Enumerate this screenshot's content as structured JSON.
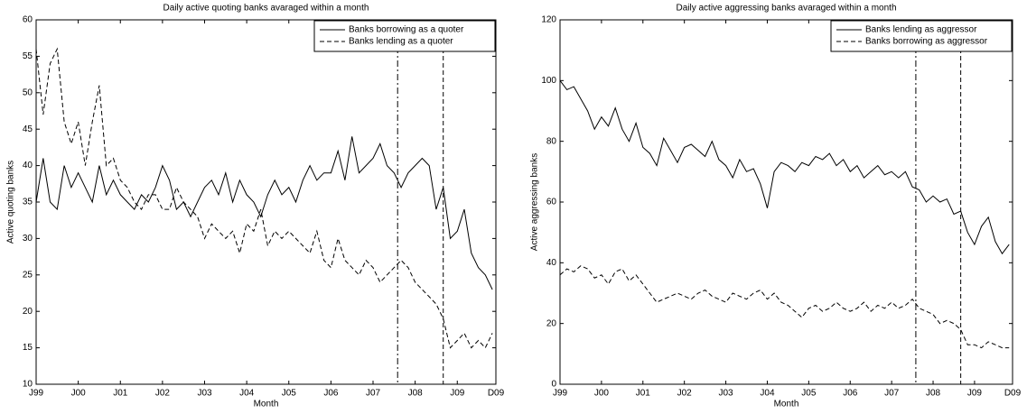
{
  "chart_data": [
    {
      "type": "line",
      "title": "Daily active quoting banks avaraged within a month",
      "xlabel": "Month",
      "ylabel": "Active quoting banks",
      "x": [
        0,
        2,
        4,
        6,
        8,
        10,
        12,
        14,
        16,
        18,
        20,
        22,
        24,
        26,
        28,
        30,
        32,
        34,
        36,
        38,
        40,
        42,
        44,
        46,
        48,
        50,
        52,
        54,
        56,
        58,
        60,
        62,
        64,
        66,
        68,
        70,
        72,
        74,
        76,
        78,
        80,
        82,
        84,
        86,
        88,
        90,
        92,
        94,
        96,
        98,
        100,
        102,
        104,
        106,
        108,
        110,
        112,
        114,
        116,
        118,
        120,
        122,
        124,
        126,
        128,
        130
      ],
      "xlim": [
        0,
        131
      ],
      "xticks": [
        {
          "value": 0,
          "label": "J99"
        },
        {
          "value": 12,
          "label": "J00"
        },
        {
          "value": 24,
          "label": "J01"
        },
        {
          "value": 36,
          "label": "J02"
        },
        {
          "value": 48,
          "label": "J03"
        },
        {
          "value": 60,
          "label": "J04"
        },
        {
          "value": 72,
          "label": "J05"
        },
        {
          "value": 84,
          "label": "J06"
        },
        {
          "value": 96,
          "label": "J07"
        },
        {
          "value": 108,
          "label": "J08"
        },
        {
          "value": 120,
          "label": "J09"
        },
        {
          "value": 131,
          "label": "D09"
        }
      ],
      "ylim": [
        10,
        60
      ],
      "yticks": [
        10,
        15,
        20,
        25,
        30,
        35,
        40,
        45,
        50,
        55,
        60
      ],
      "legend": "upper right",
      "vlines": [
        {
          "x": 103,
          "style": "dashdot"
        },
        {
          "x": 116,
          "style": "dashed"
        }
      ],
      "series": [
        {
          "name": "Banks borrowing as a quoter",
          "color": "#000000",
          "style": "solid",
          "values": [
            35,
            41,
            35,
            34,
            40,
            37,
            39,
            37,
            35,
            40,
            36,
            38,
            36,
            35,
            34,
            36,
            35,
            37,
            40,
            38,
            34,
            35,
            33,
            35,
            37,
            38,
            36,
            39,
            35,
            38,
            36,
            35,
            33,
            36,
            38,
            36,
            37,
            35,
            38,
            40,
            38,
            39,
            39,
            42,
            38,
            44,
            39,
            40,
            41,
            43,
            40,
            39,
            37,
            39,
            40,
            41,
            40,
            34,
            37,
            30,
            31,
            34,
            28,
            26,
            25,
            23
          ]
        },
        {
          "name": "Banks lending as a quoter",
          "color": "#000000",
          "style": "dashed",
          "values": [
            56,
            47,
            54,
            56,
            46,
            43,
            46,
            40,
            46,
            51,
            40,
            41,
            38,
            37,
            35,
            34,
            36,
            36,
            34,
            34,
            37,
            35,
            34,
            33,
            30,
            32,
            31,
            30,
            31,
            28,
            32,
            31,
            34,
            29,
            31,
            30,
            31,
            30,
            29,
            28,
            31,
            27,
            26,
            30,
            27,
            26,
            25,
            27,
            26,
            24,
            25,
            26,
            27,
            26,
            24,
            23,
            22,
            21,
            19,
            15,
            16,
            17,
            15,
            16,
            15,
            17
          ]
        }
      ]
    },
    {
      "type": "line",
      "title": "Daily active aggressing banks avaraged within a month",
      "xlabel": "Month",
      "ylabel": "Active aggressing banks",
      "x": [
        0,
        2,
        4,
        6,
        8,
        10,
        12,
        14,
        16,
        18,
        20,
        22,
        24,
        26,
        28,
        30,
        32,
        34,
        36,
        38,
        40,
        42,
        44,
        46,
        48,
        50,
        52,
        54,
        56,
        58,
        60,
        62,
        64,
        66,
        68,
        70,
        72,
        74,
        76,
        78,
        80,
        82,
        84,
        86,
        88,
        90,
        92,
        94,
        96,
        98,
        100,
        102,
        104,
        106,
        108,
        110,
        112,
        114,
        116,
        118,
        120,
        122,
        124,
        126,
        128,
        130
      ],
      "xlim": [
        0,
        131
      ],
      "xticks": [
        {
          "value": 0,
          "label": "J99"
        },
        {
          "value": 12,
          "label": "J00"
        },
        {
          "value": 24,
          "label": "J01"
        },
        {
          "value": 36,
          "label": "J02"
        },
        {
          "value": 48,
          "label": "J03"
        },
        {
          "value": 60,
          "label": "J04"
        },
        {
          "value": 72,
          "label": "J05"
        },
        {
          "value": 84,
          "label": "J06"
        },
        {
          "value": 96,
          "label": "J07"
        },
        {
          "value": 108,
          "label": "J08"
        },
        {
          "value": 120,
          "label": "J09"
        },
        {
          "value": 131,
          "label": "D09"
        }
      ],
      "ylim": [
        0,
        120
      ],
      "yticks": [
        0,
        20,
        40,
        60,
        80,
        100,
        120
      ],
      "legend": "upper right",
      "vlines": [
        {
          "x": 103,
          "style": "dashdot"
        },
        {
          "x": 116,
          "style": "dashed"
        }
      ],
      "series": [
        {
          "name": "Banks lending as aggressor",
          "color": "#000000",
          "style": "solid",
          "values": [
            100,
            97,
            98,
            94,
            90,
            84,
            88,
            85,
            91,
            84,
            80,
            86,
            78,
            76,
            72,
            81,
            77,
            73,
            78,
            79,
            77,
            75,
            80,
            74,
            72,
            68,
            74,
            70,
            71,
            66,
            58,
            70,
            73,
            72,
            70,
            73,
            72,
            75,
            74,
            76,
            72,
            74,
            70,
            72,
            68,
            70,
            72,
            69,
            70,
            68,
            70,
            65,
            64,
            60,
            62,
            60,
            61,
            56,
            57,
            50,
            46,
            52,
            55,
            47,
            43,
            46
          ]
        },
        {
          "name": "Banks borrowing as aggressor",
          "color": "#000000",
          "style": "dashed",
          "values": [
            36,
            38,
            37,
            39,
            38,
            35,
            36,
            33,
            37,
            38,
            34,
            36,
            33,
            30,
            27,
            28,
            29,
            30,
            29,
            28,
            30,
            31,
            29,
            28,
            27,
            30,
            29,
            28,
            30,
            31,
            28,
            30,
            27,
            26,
            24,
            22,
            25,
            26,
            24,
            25,
            27,
            25,
            24,
            25,
            27,
            24,
            26,
            25,
            27,
            25,
            26,
            28,
            25,
            24,
            23,
            20,
            21,
            20,
            18,
            13,
            13,
            12,
            14,
            13,
            12,
            12
          ]
        }
      ]
    }
  ]
}
